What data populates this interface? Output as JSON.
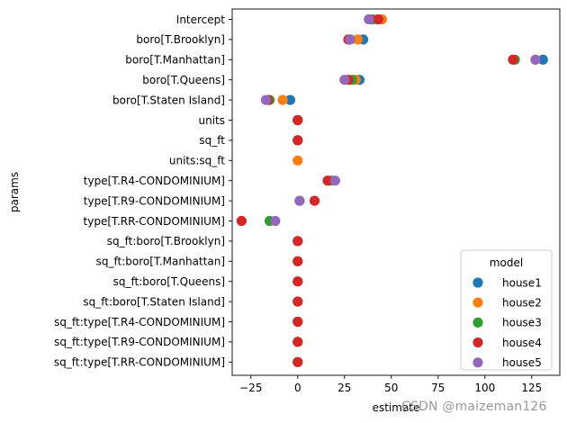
{
  "chart_data": {
    "type": "scatter",
    "title": "",
    "xlabel": "estimate",
    "ylabel": "params",
    "xlim": [
      -35,
      140
    ],
    "xticks": [
      -25,
      0,
      25,
      50,
      75,
      100,
      125
    ],
    "xtick_labels": [
      "−25",
      "0",
      "25",
      "50",
      "75",
      "100",
      "125"
    ],
    "grid": false,
    "legend_placement": "lower right",
    "legend_title": "model",
    "categories": [
      "Intercept",
      "boro[T.Brooklyn]",
      "boro[T.Manhattan]",
      "boro[T.Queens]",
      "boro[T.Staten Island]",
      "units",
      "sq_ft",
      "units:sq_ft",
      "type[T.R4-CONDOMINIUM]",
      "type[T.R9-CONDOMINIUM]",
      "type[T.RR-CONDOMINIUM]",
      "sq_ft:boro[T.Brooklyn]",
      "sq_ft:boro[T.Manhattan]",
      "sq_ft:boro[T.Queens]",
      "sq_ft:boro[T.Staten Island]",
      "sq_ft:type[T.R4-CONDOMINIUM]",
      "sq_ft:type[T.R9-CONDOMINIUM]",
      "sq_ft:type[T.RR-CONDOMINIUM]"
    ],
    "series": [
      {
        "name": "house1",
        "color": "#1f77b4",
        "values": [
          43,
          35,
          131,
          33,
          -4,
          0,
          0,
          null,
          null,
          null,
          null,
          null,
          null,
          null,
          null,
          null,
          null,
          null
        ]
      },
      {
        "name": "house2",
        "color": "#ff7f0e",
        "values": [
          45,
          32,
          127,
          31,
          -8,
          0,
          0,
          0,
          null,
          null,
          null,
          null,
          null,
          null,
          null,
          null,
          null,
          null
        ]
      },
      {
        "name": "house3",
        "color": "#2ca02c",
        "values": [
          40,
          28,
          116,
          29,
          -15,
          0,
          0,
          null,
          18,
          1,
          -15,
          0,
          0,
          0,
          0,
          0,
          0,
          0
        ]
      },
      {
        "name": "house4",
        "color": "#d62728",
        "values": [
          43,
          27,
          115,
          27,
          -16,
          0,
          0,
          null,
          16,
          9,
          -30,
          0,
          0,
          0,
          0,
          0,
          0,
          0
        ]
      },
      {
        "name": "house5",
        "color": "#9467bd",
        "values": [
          38,
          28,
          127,
          25,
          -17,
          null,
          null,
          null,
          20,
          1,
          -12,
          null,
          null,
          null,
          null,
          null,
          null,
          null
        ]
      }
    ]
  },
  "watermark": "CSDN @maizeman126"
}
